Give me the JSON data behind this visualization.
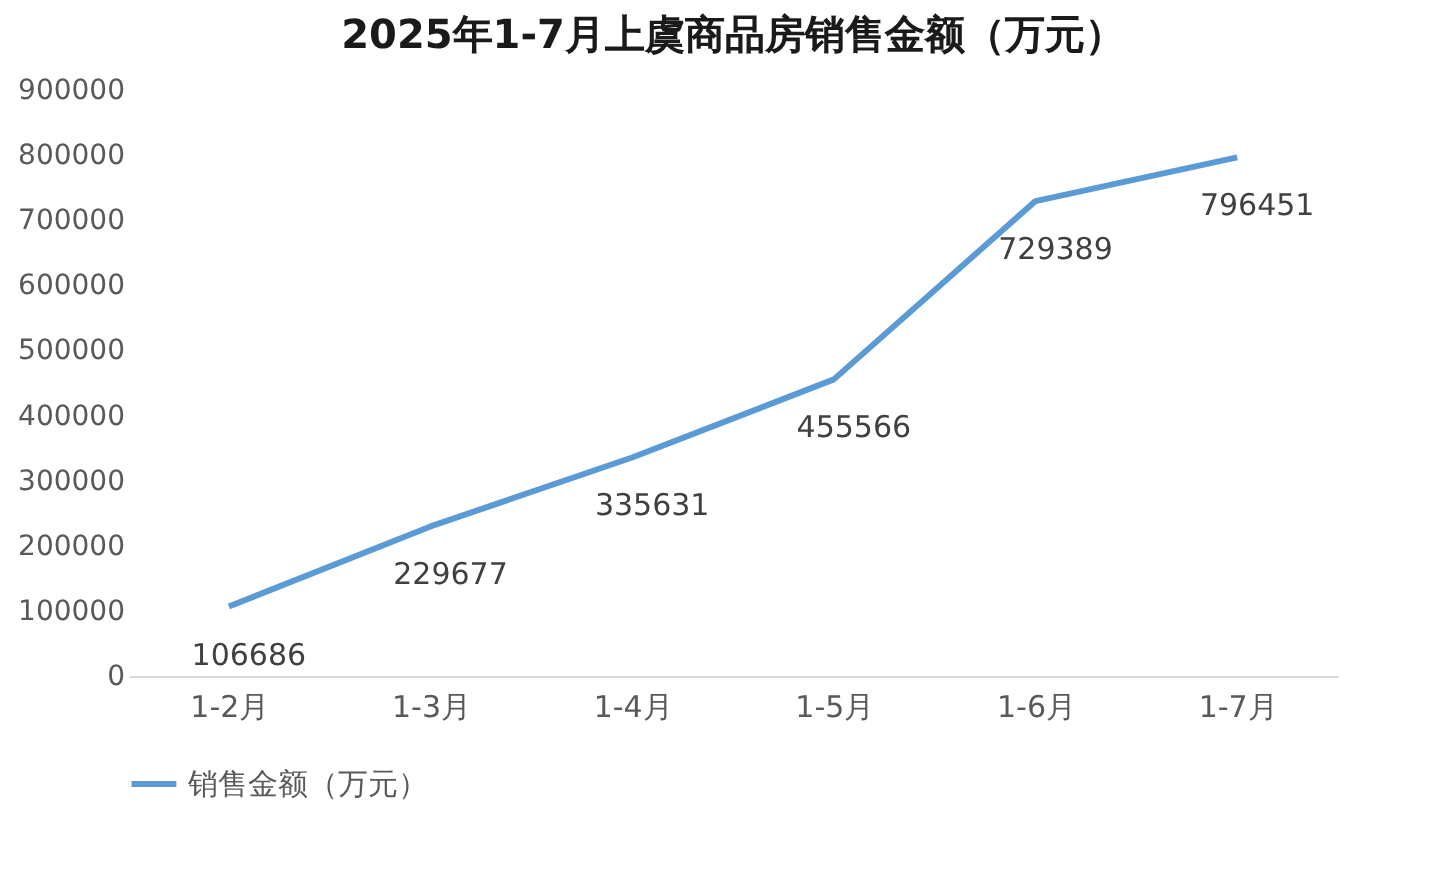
{
  "chart_data": {
    "type": "line",
    "title": "2025年1-7月上虞商品房销售金额（万元）",
    "categories": [
      "1-2月",
      "1-3月",
      "1-4月",
      "1-5月",
      "1-6月",
      "1-7月"
    ],
    "series": [
      {
        "name": "销售金额（万元）",
        "color": "#5b9bd5",
        "values": [
          106686,
          229677,
          335631,
          455566,
          729389,
          796451
        ]
      }
    ],
    "ylim": [
      0,
      900000
    ],
    "yticks": [
      0,
      100000,
      200000,
      300000,
      400000,
      500000,
      600000,
      700000,
      800000,
      900000
    ],
    "grid": false,
    "legend": "bottom",
    "data_labels": true,
    "marker": "none",
    "line_style": "solid"
  }
}
